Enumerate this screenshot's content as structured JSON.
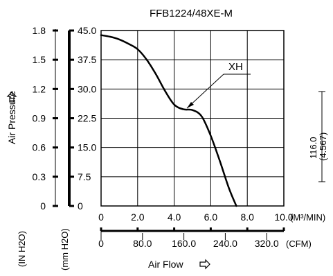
{
  "chart_data": {
    "type": "line",
    "title": "FFB1224/48XE-M",
    "xlabel": "Air Flow",
    "ylabel": "Air Pressure",
    "x": {
      "range": [
        0,
        10
      ],
      "ticks": [
        "0",
        "2.0",
        "4.0",
        "6.0",
        "8.0",
        "10.0"
      ],
      "unit": "(M³/MIN)"
    },
    "x2": {
      "ticks": [
        "0",
        "80.0",
        "160.0",
        "240.0",
        "320.0"
      ],
      "unit": "(CFM)"
    },
    "y": {
      "range": [
        0,
        45
      ],
      "ticks": [
        "0",
        "7.5",
        "15.0",
        "22.5",
        "30.0",
        "37.5",
        "45.0"
      ],
      "unit": "(mm H2O)"
    },
    "y2": {
      "ticks": [
        "0",
        "0.3",
        "0.6",
        "0.9",
        "1.2",
        "1.5",
        "1.8"
      ],
      "unit": "(IN H2O)"
    },
    "grid": true,
    "series": [
      {
        "name": "XH",
        "x": [
          0,
          0.5,
          1.0,
          1.5,
          2.0,
          2.5,
          3.0,
          3.5,
          4.0,
          4.5,
          5.0,
          5.5,
          6.0,
          6.5,
          7.0,
          7.4
        ],
        "y": [
          43.8,
          43.4,
          42.7,
          41.6,
          40.2,
          37.5,
          33.8,
          29.5,
          26.0,
          24.8,
          24.6,
          23.0,
          18.0,
          11.5,
          4.5,
          0
        ]
      }
    ],
    "dimension": {
      "value": "116.0",
      "value_inch": "(4.567)"
    }
  }
}
